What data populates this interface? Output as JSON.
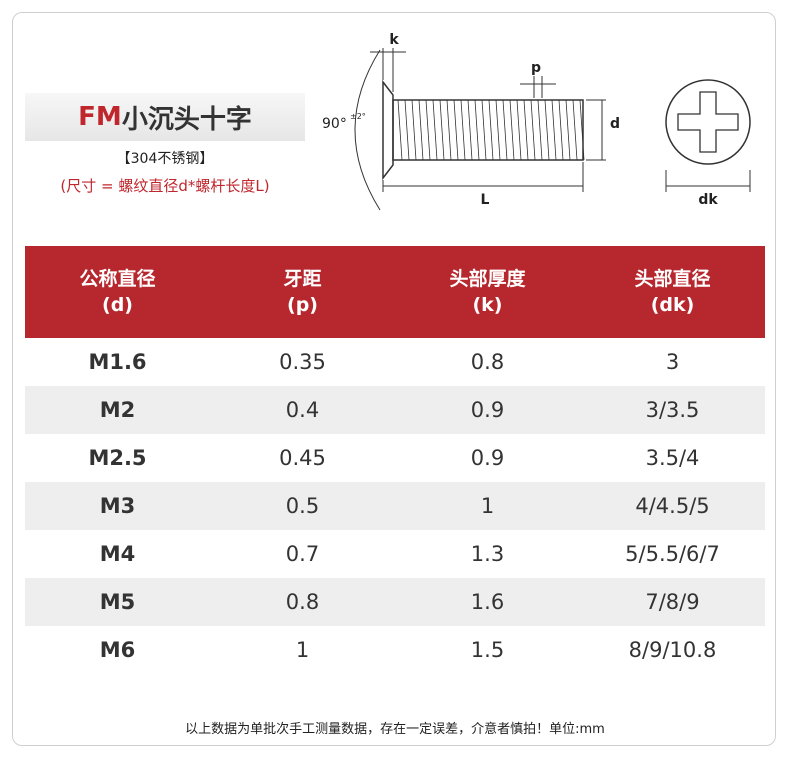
{
  "header": {
    "title_prefix": "FM",
    "title": "小沉头十字",
    "material": "【304不锈钢】",
    "size_note": "(尺寸 = 螺纹直径d*螺杆长度L)"
  },
  "diagram": {
    "k": "k",
    "p": "p",
    "d": "d",
    "L": "L",
    "dk": "dk",
    "angle": "90°",
    "tolerance": "±2°"
  },
  "table": {
    "columns": [
      [
        "公称直径",
        "(d)"
      ],
      [
        "牙距",
        "(p)"
      ],
      [
        "头部厚度",
        "(k)"
      ],
      [
        "头部直径",
        "(dk)"
      ]
    ],
    "rows": [
      [
        "M1.6",
        "0.35",
        "0.8",
        "3"
      ],
      [
        "M2",
        "0.4",
        "0.9",
        "3/3.5"
      ],
      [
        "M2.5",
        "0.45",
        "0.9",
        "3.5/4"
      ],
      [
        "M3",
        "0.5",
        "1",
        "4/4.5/5"
      ],
      [
        "M4",
        "0.7",
        "1.3",
        "5/5.5/6/7"
      ],
      [
        "M5",
        "0.8",
        "1.6",
        "7/8/9"
      ],
      [
        "M6",
        "1",
        "1.5",
        "8/9/10.8"
      ]
    ]
  },
  "footer": "以上数据为单批次手工测量数据，存在一定误差，介意者慎拍！单位:mm"
}
